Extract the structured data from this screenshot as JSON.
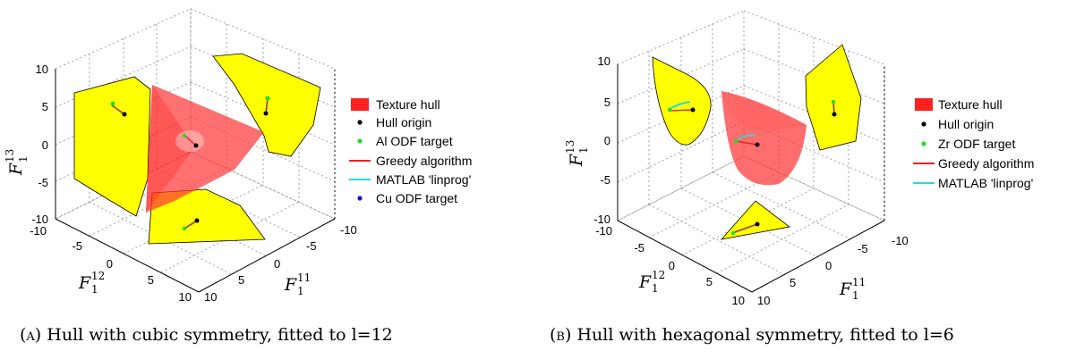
{
  "figures": [
    {
      "id": "a",
      "caption_label": "(a)",
      "caption_text": "Hull with cubic symmetry, fitted to l=12",
      "legend": [
        {
          "label": "Texture hull",
          "color": "#ff2020",
          "marker": "patch"
        },
        {
          "label": "Hull origin",
          "color": "#000000",
          "marker": "dot"
        },
        {
          "label": "Al ODF target",
          "color": "#22dd22",
          "marker": "dot"
        },
        {
          "label": "Greedy algorithm",
          "color": "#ee2222",
          "marker": "line"
        },
        {
          "label": "MATLAB 'linprog'",
          "color": "#22dddd",
          "marker": "line"
        },
        {
          "label": "Cu ODF target",
          "color": "#1515c8",
          "marker": "dot"
        }
      ],
      "axes": {
        "z_label": "F",
        "z_sup": "13",
        "z_sub": "1",
        "y_label": "F",
        "y_sup": "12",
        "y_sub": "1",
        "x_label": "F",
        "x_sup": "11",
        "x_sub": "1",
        "z_ticks": [
          "10",
          "5",
          "0",
          "-5",
          "-10"
        ],
        "y_ticks": [
          "-10",
          "-5",
          "0",
          "5",
          "10"
        ],
        "x_ticks": [
          "10",
          "5",
          "0",
          "-5",
          "-10"
        ]
      }
    },
    {
      "id": "b",
      "caption_label": "(b)",
      "caption_text": "Hull with hexagonal symmetry, fitted to l=6",
      "legend": [
        {
          "label": "Texture hull",
          "color": "#ff2020",
          "marker": "patch"
        },
        {
          "label": "Hull origin",
          "color": "#000000",
          "marker": "dot"
        },
        {
          "label": "Zr ODF target",
          "color": "#22dd22",
          "marker": "dot"
        },
        {
          "label": "Greedy algorithm",
          "color": "#ee2222",
          "marker": "line"
        },
        {
          "label": "MATLAB 'linprog'",
          "color": "#22dddd",
          "marker": "line"
        }
      ],
      "axes": {
        "z_label": "F",
        "z_sup": "13",
        "z_sub": "1",
        "y_label": "F",
        "y_sup": "12",
        "y_sub": "1",
        "x_label": "F",
        "x_sup": "11",
        "x_sub": "1",
        "z_ticks": [
          "10",
          "5",
          "0",
          "-5",
          "-10"
        ],
        "y_ticks": [
          "-10",
          "-5",
          "0",
          "5",
          "10"
        ],
        "x_ticks": [
          "10",
          "5",
          "0",
          "-5",
          "-10"
        ]
      }
    }
  ],
  "colors": {
    "projection_fill": "#ffff00",
    "hull_fill": "#ff3030",
    "grid": "#a0a0a0"
  }
}
